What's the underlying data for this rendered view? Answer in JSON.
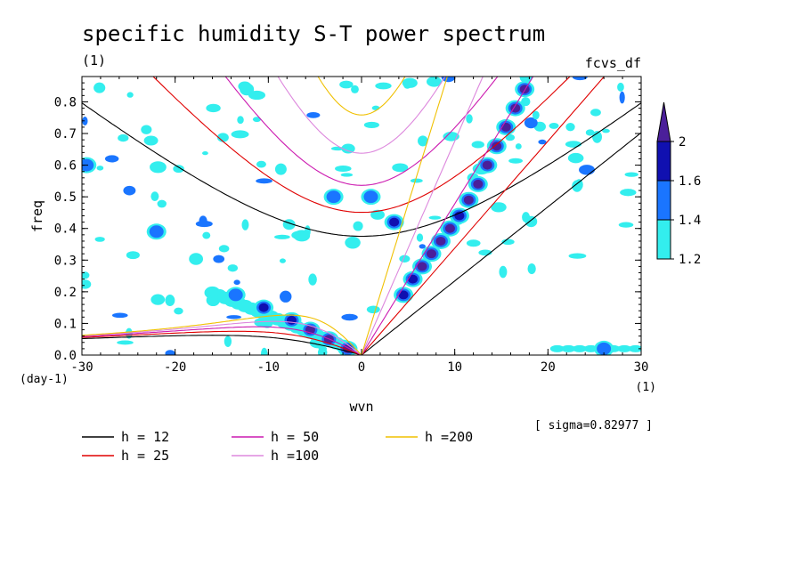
{
  "chart_data": {
    "type": "heatmap",
    "title": "specific humidity S-T power spectrum",
    "subtitle": "(1)",
    "corner_label": "fcvs_df",
    "xlabel": "wvn",
    "ylabel": "freq",
    "x_units": "(1)",
    "y_units": "(day-1)",
    "xlim": [
      -30,
      30
    ],
    "ylim": [
      0,
      0.88
    ],
    "x_ticks": [
      -30,
      -20,
      -10,
      0,
      10,
      20,
      30
    ],
    "y_ticks": [
      0.0,
      0.1,
      0.2,
      0.3,
      0.4,
      0.5,
      0.6,
      0.7,
      0.8
    ],
    "x_tick_labels": [
      "-30",
      "-20",
      "-10",
      "0",
      "10",
      "20",
      "30"
    ],
    "y_tick_labels": [
      "0.0",
      "0.1",
      "0.2",
      "0.3",
      "0.4",
      "0.5",
      "0.6",
      "0.7",
      "0.8"
    ],
    "sigma_note": "[ sigma=0.82977 ]",
    "colorbar": {
      "levels": [
        1.2,
        1.4,
        1.6,
        2
      ],
      "level_labels": [
        "1.2",
        "1.4",
        "1.6",
        "2"
      ],
      "colors": [
        "#33eeee",
        "#1a75ff",
        "#1010b0",
        "#4b1f9a"
      ],
      "extend": "max"
    },
    "dispersion_curves": [
      {
        "label": "h = 12",
        "h": 12,
        "color": "#000000"
      },
      {
        "label": "h = 25",
        "h": 25,
        "color": "#e00000"
      },
      {
        "label": "h = 50",
        "h": 50,
        "color": "#cc1ab0"
      },
      {
        "label": "h =100",
        "h": 100,
        "color": "#dd88dd"
      },
      {
        "label": "h =200",
        "h": 200,
        "color": "#f0c000"
      }
    ],
    "spectral_peaks": [
      {
        "x": 17.5,
        "y": 0.84,
        "level": 2
      },
      {
        "x": 16.5,
        "y": 0.78,
        "level": 2
      },
      {
        "x": 15.5,
        "y": 0.72,
        "level": 2
      },
      {
        "x": 14.5,
        "y": 0.66,
        "level": 2
      },
      {
        "x": 13.5,
        "y": 0.6,
        "level": 2
      },
      {
        "x": 12.5,
        "y": 0.54,
        "level": 2
      },
      {
        "x": 11.5,
        "y": 0.49,
        "level": 2
      },
      {
        "x": 10.5,
        "y": 0.44,
        "level": 1.6
      },
      {
        "x": 9.5,
        "y": 0.4,
        "level": 2
      },
      {
        "x": 8.5,
        "y": 0.36,
        "level": 2
      },
      {
        "x": 7.5,
        "y": 0.32,
        "level": 2
      },
      {
        "x": 6.5,
        "y": 0.28,
        "level": 2
      },
      {
        "x": 5.5,
        "y": 0.24,
        "level": 1.6
      },
      {
        "x": 4.5,
        "y": 0.19,
        "level": 1.6
      },
      {
        "x": 3.5,
        "y": 0.42,
        "level": 1.6
      },
      {
        "x": -1.5,
        "y": 0.02,
        "level": 2
      },
      {
        "x": -3.5,
        "y": 0.05,
        "level": 2
      },
      {
        "x": -5.5,
        "y": 0.08,
        "level": 2
      },
      {
        "x": -7.5,
        "y": 0.11,
        "level": 1.6
      },
      {
        "x": -10.5,
        "y": 0.15,
        "level": 1.6
      },
      {
        "x": -13.5,
        "y": 0.19,
        "level": 1.4
      },
      {
        "x": -3.0,
        "y": 0.5,
        "level": 1.4
      },
      {
        "x": 1.0,
        "y": 0.5,
        "level": 1.4
      },
      {
        "x": -22.0,
        "y": 0.39,
        "level": 1.4
      },
      {
        "x": -29.5,
        "y": 0.6,
        "level": 1.4
      },
      {
        "x": 26.0,
        "y": 0.02,
        "level": 1.4
      }
    ]
  }
}
